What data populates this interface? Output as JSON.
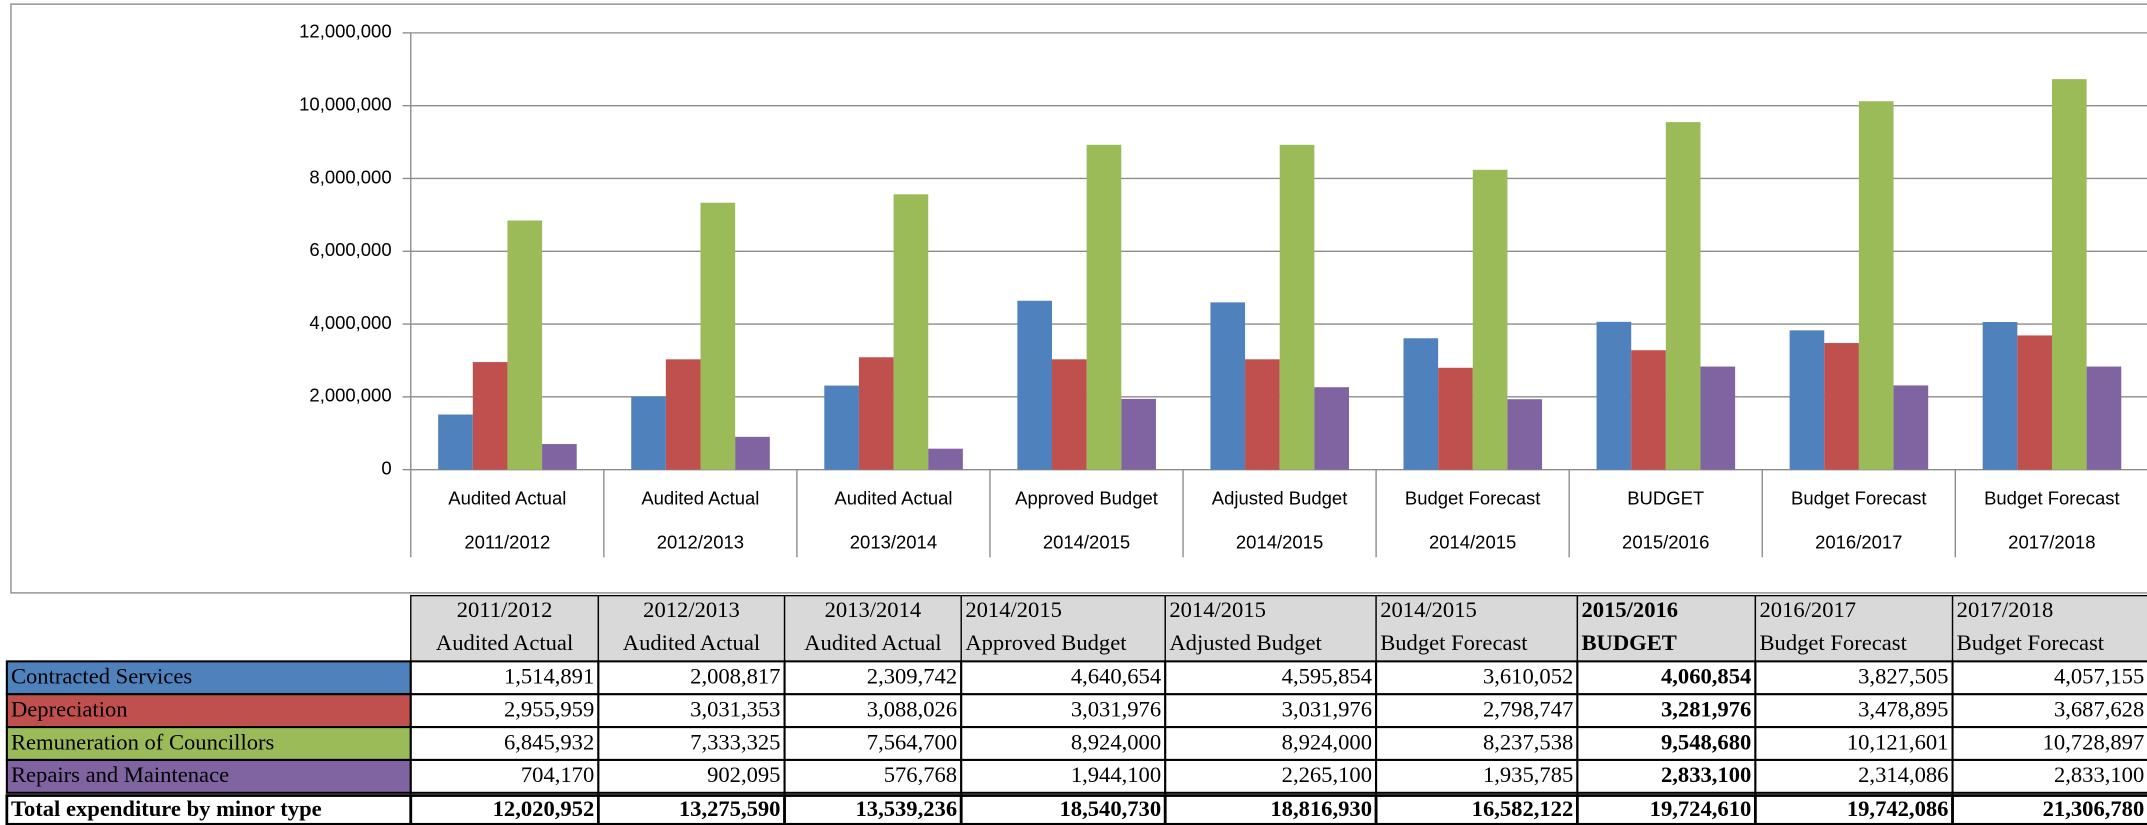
{
  "chart_data": {
    "type": "bar",
    "categories": [
      "Audited Actual",
      "Audited Actual",
      "Audited Actual",
      "Approved Budget",
      "Adjusted Budget",
      "Budget Forecast",
      "BUDGET",
      "Budget Forecast",
      "Budget Forecast"
    ],
    "periods": [
      "2011/2012",
      "2012/2013",
      "2013/2014",
      "2014/2015",
      "2014/2015",
      "2014/2015",
      "2015/2016",
      "2016/2017",
      "2017/2018"
    ],
    "ylim": [
      0,
      12000000
    ],
    "yticks": [
      0,
      {
        "value": 2000000,
        "label": "2,000,000"
      },
      {
        "value": 4000000,
        "label": "4,000,000"
      },
      {
        "value": 6000000,
        "label": "6,000,000"
      },
      {
        "value": 8000000,
        "label": "8,000,000"
      },
      {
        "value": 10000000,
        "label": "10,000,000"
      },
      {
        "value": 12000000,
        "label": "12,000,000"
      }
    ],
    "grid": true,
    "series": [
      {
        "name": "Contracted Services",
        "color": "#4f81bd",
        "values": [
          1514891,
          2008817,
          2309742,
          4640654,
          4595854,
          3610052,
          4060854,
          3827505,
          4057155
        ],
        "value_labels": [
          "1,514,891",
          "2,008,817",
          "2,309,742",
          "4,640,654",
          "4,595,854",
          "3,610,052",
          "4,060,854",
          "3,827,505",
          "4,057,155"
        ]
      },
      {
        "name": "Depreciation",
        "color": "#c0504d",
        "values": [
          2955959,
          3031353,
          3088026,
          3031976,
          3031976,
          2798747,
          3281976,
          3478895,
          3687628
        ],
        "value_labels": [
          "2,955,959",
          "3,031,353",
          "3,088,026",
          "3,031,976",
          "3,031,976",
          "2,798,747",
          "3,281,976",
          "3,478,895",
          "3,687,628"
        ]
      },
      {
        "name": "Remuneration of Councillors",
        "color": "#9bbb59",
        "values": [
          6845932,
          7333325,
          7564700,
          8924000,
          8924000,
          8237538,
          9548680,
          10121601,
          10728897
        ],
        "value_labels": [
          "6,845,932",
          "7,333,325",
          "7,564,700",
          "8,924,000",
          "8,924,000",
          "8,237,538",
          "9,548,680",
          "10,121,601",
          "10,728,897"
        ]
      },
      {
        "name": "Repairs and Maintenace",
        "color": "#8064a2",
        "values": [
          704170,
          902095,
          576768,
          1944100,
          2265100,
          1935785,
          2833100,
          2314086,
          2833100
        ],
        "value_labels": [
          "704,170",
          "902,095",
          "576,768",
          "1,944,100",
          "2,265,100",
          "1,935,785",
          "2,833,100",
          "2,314,086",
          "2,833,100"
        ]
      }
    ]
  },
  "table": {
    "total_label": "Total expenditure by minor type",
    "totals": [
      "12,020,952",
      "13,275,590",
      "13,539,236",
      "18,540,730",
      "18,816,930",
      "16,582,122",
      "19,724,610",
      "19,742,086",
      "21,306,780"
    ]
  }
}
